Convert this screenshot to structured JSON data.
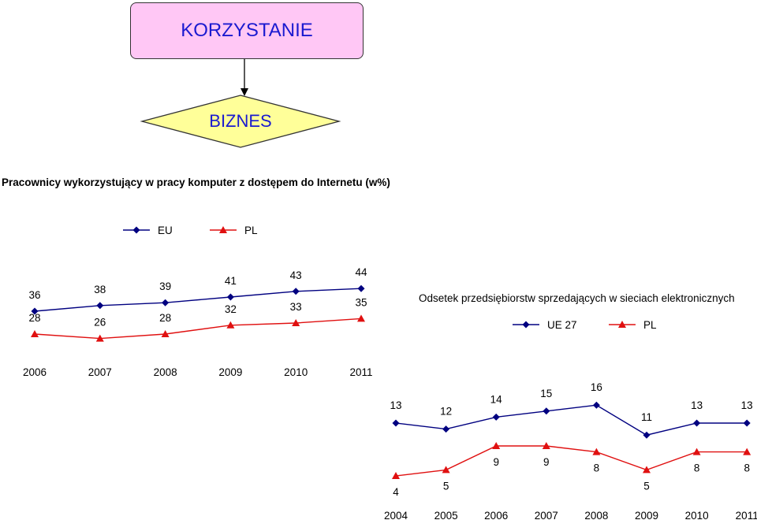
{
  "flow": {
    "top_label": "KORZYSTANIE",
    "bottom_label": "BIZNES"
  },
  "colors": {
    "box_fill": "#ffc7f5",
    "diamond_fill": "#ffff99",
    "label_text": "#1a1ad0",
    "eu_series": "#000080",
    "pl_series": "#e01010"
  },
  "chart_data": [
    {
      "type": "line",
      "title": "Pracownicy wykorzystujący w pracy komputer z dostępem do Internetu (w%)",
      "x": [
        "2006",
        "2007",
        "2008",
        "2009",
        "2010",
        "2011"
      ],
      "series": [
        {
          "name": "EU",
          "marker": "diamond",
          "values": [
            36,
            38,
            39,
            41,
            43,
            44
          ]
        },
        {
          "name": "PL",
          "marker": "triangle",
          "values": [
            28,
            26,
            28,
            32,
            33,
            35
          ]
        }
      ],
      "legend": "top",
      "grid": false
    },
    {
      "type": "line",
      "title": "Odsetek przedsiębiorstw sprzedających w sieciach elektronicznych",
      "x": [
        "2004",
        "2005",
        "2006",
        "2007",
        "2008",
        "2009",
        "2010",
        "2011"
      ],
      "series": [
        {
          "name": "UE 27",
          "marker": "diamond",
          "values": [
            13,
            12,
            14,
            15,
            16,
            11,
            13,
            13
          ]
        },
        {
          "name": "PL",
          "marker": "triangle",
          "values": [
            4,
            5,
            9,
            9,
            8,
            5,
            8,
            8
          ]
        }
      ],
      "legend": "top",
      "grid": false
    }
  ]
}
